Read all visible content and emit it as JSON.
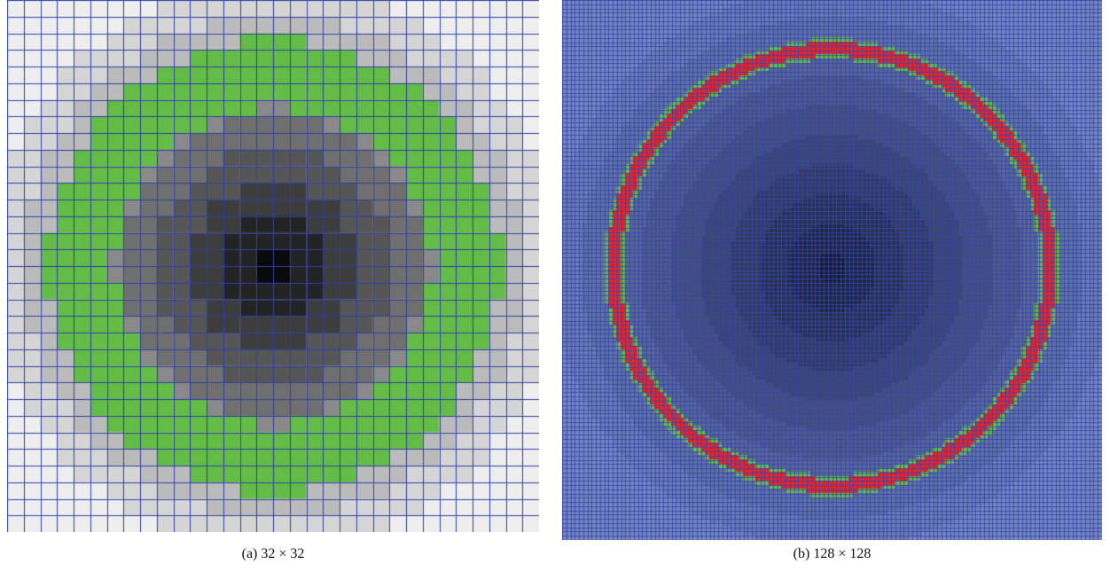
{
  "figures": [
    {
      "id": "a",
      "caption": "(a) 32 × 32",
      "grid_cells": 32,
      "colormap": "grayscale",
      "ring_cells": {
        "inner": "#63bc46"
      },
      "grid_line_color": "#2f3fa8"
    },
    {
      "id": "b",
      "caption": "(b) 128 × 128",
      "grid_cells": 128,
      "colormap": "blue-tinted",
      "ring_cells": {
        "inner": "#ee2222",
        "border": "#63bc46"
      },
      "grid_line_color": "#3247b0"
    }
  ]
}
